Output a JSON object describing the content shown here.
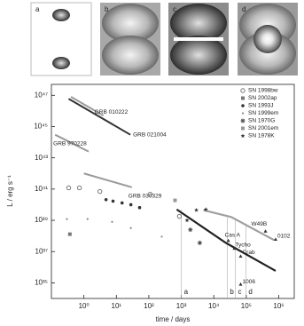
{
  "panels": [
    "a",
    "b",
    "c",
    "d"
  ],
  "chart_data": {
    "type": "scatter",
    "x_label": "time / days",
    "y_label": "L / erg s⁻¹",
    "xscale": "log",
    "yscale": "log",
    "xlim": [
      0.1,
      3000000
    ],
    "ylim": [
      1e+34,
      5e+47
    ],
    "xticks": [
      {
        "value": 1,
        "label": "10⁰"
      },
      {
        "value": 10,
        "label": "10¹"
      },
      {
        "value": 100,
        "label": "10²"
      },
      {
        "value": 1000,
        "label": "10³"
      },
      {
        "value": 10000,
        "label": "10⁴"
      },
      {
        "value": 100000,
        "label": "10⁵"
      },
      {
        "value": 1000000,
        "label": "10⁶"
      }
    ],
    "yticks": [
      {
        "value": 1e+35,
        "label": "10³⁵"
      },
      {
        "value": 1e+37,
        "label": "10³⁷"
      },
      {
        "value": 1e+39,
        "label": "10³⁹"
      },
      {
        "value": 1e+41,
        "label": "10⁴¹"
      },
      {
        "value": 1e+43,
        "label": "10⁴³"
      },
      {
        "value": 1e+45,
        "label": "10⁴⁵"
      },
      {
        "value": 1e+47,
        "label": "10⁴⁷"
      }
    ],
    "legend": "upper right",
    "lines": [
      {
        "name": "GRB 010222",
        "color": "#9a9a9a",
        "x": [
          0.4,
          4
        ],
        "values": [
          8e+46,
          5e+45
        ]
      },
      {
        "name": "GRB 021004",
        "color": "#333333",
        "x": [
          0.34,
          27
        ],
        "values": [
          6e+46,
          3e+44
        ]
      },
      {
        "name": "GRB 970228",
        "color": "#9a9a9a",
        "x": [
          0.13,
          1.4
        ],
        "values": [
          3e+44,
          2.5e+43
        ]
      },
      {
        "name": "GRB 030329",
        "color": "#9a9a9a",
        "x": [
          1,
          30
        ],
        "values": [
          1e+42,
          1.3e+41
        ]
      }
    ],
    "series": [
      {
        "name": "SN 1998bw",
        "marker": "circle-open",
        "color": "#777777",
        "x": [
          0.34,
          0.73,
          3.1,
          110,
          870
        ],
        "values": [
          1.2e+41,
          1.2e+41,
          7e+40,
          4.7e+40,
          1.8e+39
        ]
      },
      {
        "name": "SN 2002ap",
        "marker": "square",
        "color": "#777777",
        "x": [
          0.37
        ],
        "values": [
          1.3e+38
        ]
      },
      {
        "name": "SN 1993J",
        "marker": "dot",
        "color": "#333333",
        "x": [
          4.8,
          7.9,
          15,
          28,
          52
        ],
        "values": [
          2.1e+40,
          1.7e+40,
          1.3e+40,
          1e+40,
          6.5e+39
        ]
      },
      {
        "name": "SN 1999em",
        "marker": "small-dot",
        "color": "#888888",
        "x": [
          0.3,
          1.3,
          7.4,
          28,
          250
        ],
        "values": [
          1.2e+39,
          1.2e+39,
          8e+38,
          3.2e+38,
          9e+37
        ]
      },
      {
        "name": "SN 1970G",
        "marker": "asterisk",
        "color": "#555555",
        "x": [
          1900,
          3700
        ],
        "values": [
          2.5e+38,
          3.6e+37
        ]
      },
      {
        "name": "SN 2001em",
        "marker": "square",
        "color": "#999999",
        "x": [
          640
        ],
        "values": [
          1.9e+40
        ]
      },
      {
        "name": "SN 1978K",
        "marker": "star",
        "color": "#333333",
        "x": [
          2900,
          5700,
          1500
        ],
        "values": [
          4.5e+39,
          5e+39,
          1e+39
        ]
      }
    ],
    "remnant_lines": [
      {
        "color": "#222222",
        "x": [
          720,
          23000,
          800000
        ],
        "values": [
          5e+39,
          3.7e+37,
          5.8e+35
        ]
      },
      {
        "color": "#a0a0a0",
        "x": [
          4800,
          35000,
          720000
        ],
        "values": [
          4.5e+39,
          1.6e+39,
          5.4e+37
        ]
      }
    ],
    "remnants": [
      {
        "name": "W49B",
        "x": 390000,
        "value": 2e+38
      },
      {
        "name": "0102",
        "x": 800000,
        "value": 6e+37
      },
      {
        "name": "Cas A",
        "x": 28000,
        "value": 5e+37
      },
      {
        "name": "Tycho",
        "x": 43000,
        "value": 1.6e+37
      },
      {
        "name": "Crab",
        "x": 67000,
        "value": 5e+36
      },
      {
        "name": "1006",
        "x": 67000,
        "value": 8e+34
      }
    ],
    "epochs": [
      {
        "label": "a",
        "x": 1000,
        "value": 5e+39
      },
      {
        "label": "b",
        "x": 26000,
        "value": 1.5e+39
      },
      {
        "label": "c",
        "x": 46000,
        "value": 1.2e+39
      },
      {
        "label": "d",
        "x": 97000,
        "value": 6e+38
      }
    ]
  }
}
